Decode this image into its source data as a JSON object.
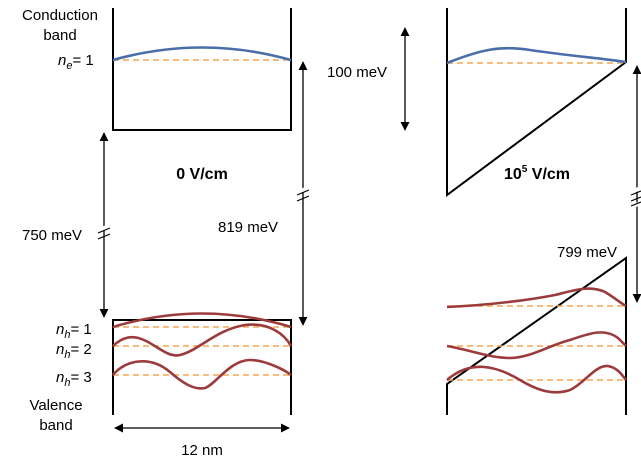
{
  "labels": {
    "conduction_band_line1": "Conduction",
    "conduction_band_line2": "band",
    "valence_band_line1": "Valence",
    "valence_band_line2": "band",
    "ne1_prefix": "n",
    "ne1_sub": "e",
    "ne1_suffix": "= 1",
    "nh1_prefix": "n",
    "nh1_sub": "h",
    "nh1_suffix": "= 1",
    "nh2_prefix": "n",
    "nh2_sub": "h",
    "nh2_suffix": "= 2",
    "nh3_prefix": "n",
    "nh3_sub": "h",
    "nh3_suffix": "= 3",
    "field_zero": "0 V/cm",
    "field_high_base": "10",
    "field_high_exp": "5",
    "field_high_unit": " V/cm",
    "dim_750": "750 meV",
    "dim_819": "819 meV",
    "dim_100": "100 meV",
    "dim_799": "799 meV",
    "dim_width": "12 nm"
  },
  "colors": {
    "electron_wave": "#4a6ea9",
    "hole_wave": "#9c3b3b",
    "energy_level": "#f4a654",
    "well": "#000000"
  }
}
